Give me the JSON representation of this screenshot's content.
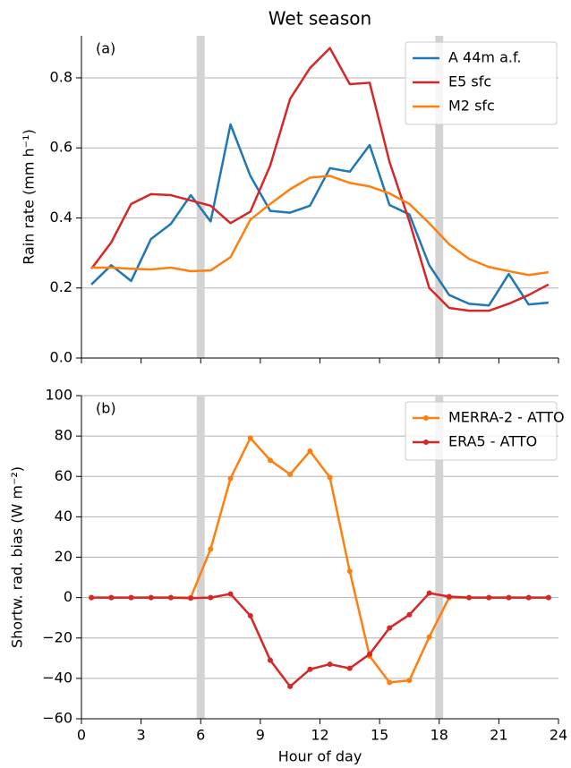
{
  "chart_data": [
    {
      "type": "line",
      "title": "Wet season",
      "annotation": "(a)",
      "ylabel": "Rain rate (mm h⁻¹)",
      "x": [
        0.5,
        1.5,
        2.5,
        3.5,
        4.5,
        5.5,
        6.5,
        7.5,
        8.5,
        9.5,
        10.5,
        11.5,
        12.5,
        13.5,
        14.5,
        15.5,
        16.5,
        17.5,
        18.5,
        19.5,
        20.5,
        21.5,
        22.5,
        23.5
      ],
      "series": [
        {
          "name": "A 44m a.f.",
          "color": "#1f77b4",
          "values": [
            0.21,
            0.265,
            0.22,
            0.34,
            0.383,
            0.465,
            0.39,
            0.667,
            0.52,
            0.42,
            0.415,
            0.435,
            0.542,
            0.532,
            0.608,
            0.437,
            0.41,
            0.265,
            0.18,
            0.155,
            0.15,
            0.24,
            0.153,
            0.158
          ]
        },
        {
          "name": "E5 sfc",
          "color": "#d62728",
          "values": [
            0.255,
            0.33,
            0.44,
            0.468,
            0.465,
            0.45,
            0.435,
            0.385,
            0.418,
            0.55,
            0.74,
            0.828,
            0.885,
            0.782,
            0.786,
            0.56,
            0.39,
            0.2,
            0.143,
            0.135,
            0.135,
            0.155,
            0.18,
            0.21
          ]
        },
        {
          "name": "M2 sfc",
          "color": "#ff7f0e",
          "values": [
            0.258,
            0.258,
            0.255,
            0.253,
            0.258,
            0.248,
            0.25,
            0.288,
            0.395,
            0.44,
            0.482,
            0.515,
            0.52,
            0.5,
            0.49,
            0.47,
            0.44,
            0.385,
            0.325,
            0.283,
            0.26,
            0.248,
            0.237,
            0.245
          ]
        }
      ],
      "spans": [
        [
          5.8,
          6.2
        ],
        [
          17.8,
          18.2
        ]
      ],
      "span_color": "#d3d3d3",
      "xlim": [
        0,
        24
      ],
      "xticks": [
        0,
        3,
        6,
        9,
        12,
        15,
        18,
        21,
        24
      ],
      "xtick_labels": false,
      "ylim": [
        0,
        0.92
      ],
      "yticks": [
        {
          "value": 0,
          "label": "0.0"
        },
        0.2,
        0.4,
        0.6,
        0.8
      ],
      "grid": true,
      "legend": "upper right",
      "markers": false
    },
    {
      "type": "line",
      "annotation": "(b)",
      "ylabel": "Shortw. rad. bias (W m⁻²)",
      "xlabel": "Hour of day",
      "x": [
        0.5,
        1.5,
        2.5,
        3.5,
        4.5,
        5.5,
        6.5,
        7.5,
        8.5,
        9.5,
        10.5,
        11.5,
        12.5,
        13.5,
        14.5,
        15.5,
        16.5,
        17.5,
        18.5,
        19.5,
        20.5,
        21.5,
        22.5,
        23.5
      ],
      "series": [
        {
          "name": "MERRA-2 - ATTO",
          "color": "#ff7f0e",
          "values": [
            0,
            0,
            0,
            0,
            0,
            0,
            24,
            59,
            79,
            68,
            61,
            72.5,
            59.5,
            13,
            -29,
            -42,
            -41,
            -19.5,
            0,
            0,
            0,
            0,
            0,
            0
          ]
        },
        {
          "name": "ERA5 - ATTO",
          "color": "#d62728",
          "values": [
            0,
            0,
            0,
            0,
            0,
            -0.3,
            0,
            1.8,
            -9,
            -31,
            -44,
            -35.5,
            -33,
            -35,
            -28,
            -15,
            -8.5,
            2.2,
            0.5,
            0,
            0,
            0,
            0,
            0
          ]
        }
      ],
      "spans": [
        [
          5.8,
          6.2
        ],
        [
          17.8,
          18.2
        ]
      ],
      "span_color": "#d3d3d3",
      "xlim": [
        0,
        24
      ],
      "xticks": [
        0,
        3,
        6,
        9,
        12,
        15,
        18,
        21,
        24
      ],
      "xtick_labels": true,
      "ylim": [
        -60,
        100
      ],
      "yticks": [
        {
          "value": -60,
          "label": "−60"
        },
        {
          "value": -40,
          "label": "−40"
        },
        {
          "value": -20,
          "label": "−20"
        },
        0,
        20,
        40,
        60,
        80,
        100
      ],
      "grid": true,
      "legend": "upper right",
      "markers": true
    }
  ]
}
